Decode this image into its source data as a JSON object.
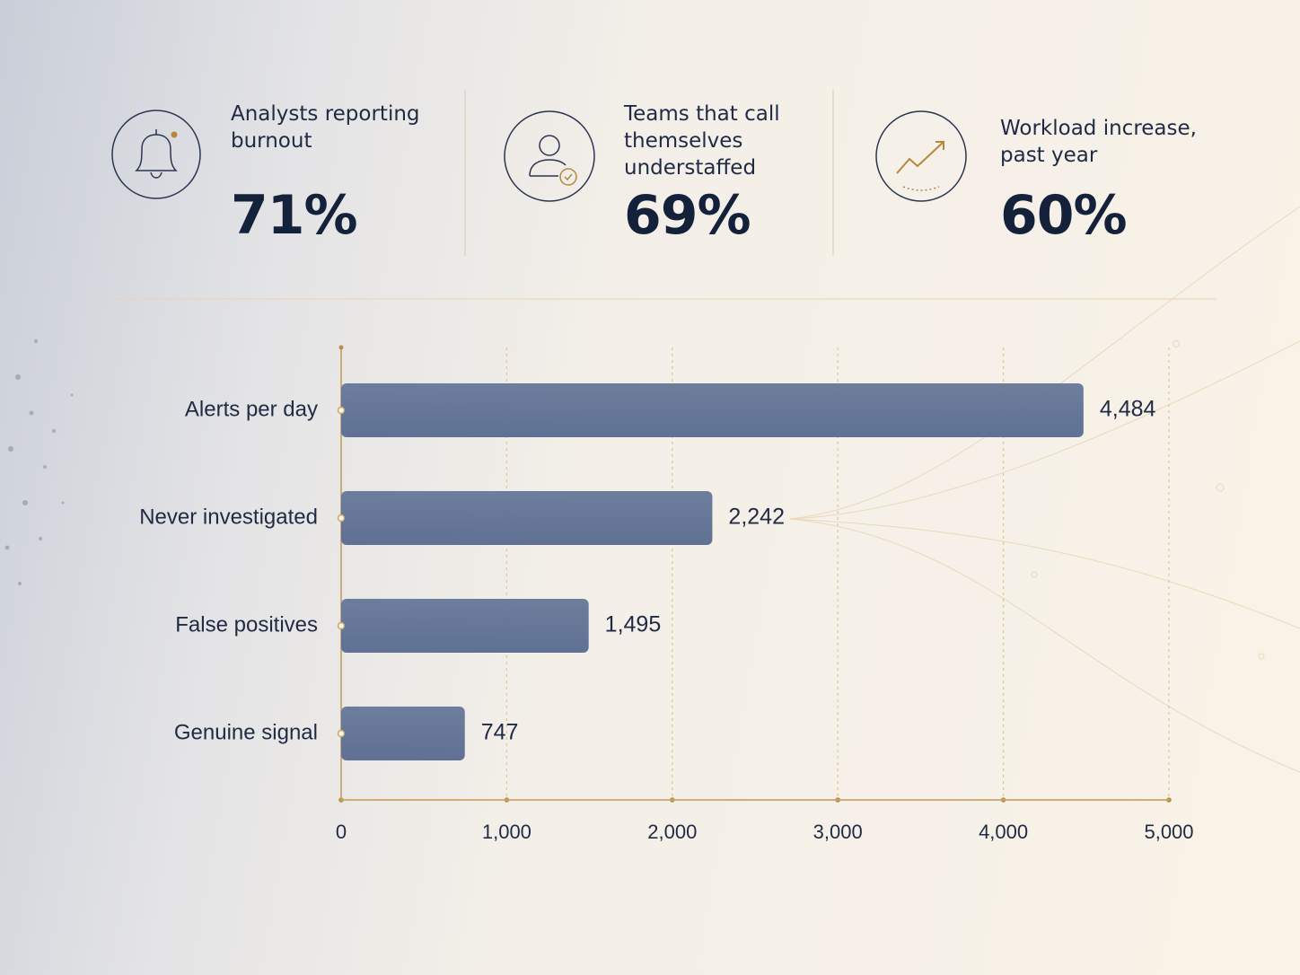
{
  "stats": [
    {
      "label": "Analysts reporting burnout",
      "value": "71%"
    },
    {
      "label": "Teams that call themselves understaffed",
      "value": "69%"
    },
    {
      "label": "Workload increase, past year",
      "value": "60%"
    }
  ],
  "chart_data": {
    "type": "bar",
    "orientation": "horizontal",
    "categories": [
      "Alerts per day",
      "Never investigated",
      "False positives",
      "Genuine signal"
    ],
    "values": [
      4484,
      2242,
      1495,
      747
    ],
    "value_labels": [
      "4,484",
      "2,242",
      "1,495",
      "747"
    ],
    "color": "#5f7194",
    "xlim": [
      0,
      5000
    ],
    "xticks": [
      0,
      {
        "value": 1000,
        "label": "1,000"
      },
      {
        "value": 2000,
        "label": "2,000"
      },
      {
        "value": 3000,
        "label": "3,000"
      },
      {
        "value": 4000,
        "label": "4,000"
      },
      {
        "value": 5000,
        "label": "5,000"
      }
    ],
    "grid": true
  }
}
